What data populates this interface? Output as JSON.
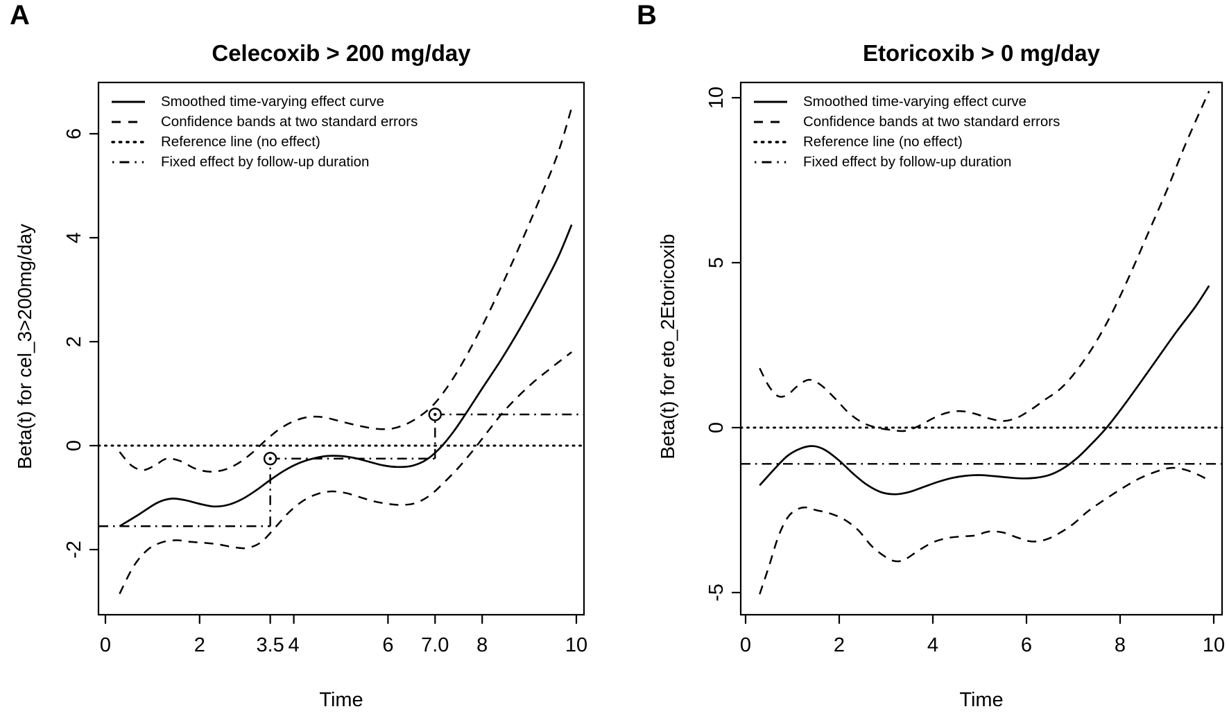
{
  "figure": {
    "background": "#ffffff",
    "ink_color": "#000000"
  },
  "chart_data": [
    {
      "id": "a",
      "panel_letter": "A",
      "type": "line",
      "title": "Celecoxib > 200 mg/day",
      "xlabel": "Time",
      "ylabel": "Beta(t) for cel_3>200mg/day",
      "xlim": [
        -0.15,
        10.16
      ],
      "ylim": [
        -3.3,
        7.0
      ],
      "grid": false,
      "legend_position": "top-left",
      "x_ticks": [
        {
          "value": 0,
          "label": "0"
        },
        {
          "value": 2,
          "label": "2"
        },
        {
          "value": 3.5,
          "label": "3.5"
        },
        {
          "value": 4,
          "label": "4"
        },
        {
          "value": 6,
          "label": "6"
        },
        {
          "value": 7,
          "label": "7.0"
        },
        {
          "value": 8,
          "label": "8"
        },
        {
          "value": 10,
          "label": "10"
        }
      ],
      "y_ticks": [
        {
          "value": 6,
          "label": "6"
        },
        {
          "value": 4,
          "label": "4"
        },
        {
          "value": 2,
          "label": "2"
        },
        {
          "value": 0,
          "label": "0"
        },
        {
          "value": -2,
          "label": "-2"
        }
      ],
      "legend": [
        {
          "label": "Smoothed time-varying effect curve",
          "style": "solid"
        },
        {
          "label": "Confidence bands at two standard errors",
          "style": "dashed"
        },
        {
          "label": "Reference line (no effect)",
          "style": "dotted"
        },
        {
          "label": "Fixed effect by follow-up duration",
          "style": "dashdot"
        }
      ],
      "reference_lines": [
        {
          "name": "Reference line (no effect)",
          "y": 0,
          "style": "dotted"
        }
      ],
      "fixed_effect_steps": {
        "style": "dashdot",
        "levels": [
          {
            "x1": -0.15,
            "x2": 3.5,
            "y": -1.55
          },
          {
            "x1": 3.5,
            "x2": 7.0,
            "y": -0.25
          },
          {
            "x1": 7.0,
            "x2": 10.16,
            "y": 0.6
          }
        ],
        "jumps": [
          {
            "x": 3.5,
            "y1": -1.55,
            "y2": -0.25
          },
          {
            "x": 7.0,
            "y1": -0.25,
            "y2": 0.6
          }
        ],
        "markers": [
          {
            "x": 3.5,
            "y": -0.25
          },
          {
            "x": 7.0,
            "y": 0.6
          }
        ]
      },
      "series": [
        {
          "name": "Smoothed time-varying effect curve",
          "style": "solid",
          "x": [
            0.3,
            0.7,
            1.1,
            1.4,
            1.7,
            2.0,
            2.3,
            2.6,
            2.9,
            3.2,
            3.5,
            3.8,
            4.1,
            4.4,
            4.7,
            5.0,
            5.3,
            5.6,
            5.9,
            6.2,
            6.5,
            6.8,
            7.1,
            7.4,
            7.7,
            8.0,
            8.4,
            8.8,
            9.2,
            9.6,
            9.9
          ],
          "y": [
            -1.55,
            -1.33,
            -1.1,
            -1.02,
            -1.05,
            -1.12,
            -1.17,
            -1.14,
            -1.03,
            -0.86,
            -0.66,
            -0.48,
            -0.34,
            -0.25,
            -0.2,
            -0.2,
            -0.24,
            -0.31,
            -0.38,
            -0.41,
            -0.39,
            -0.28,
            -0.05,
            0.28,
            0.68,
            1.1,
            1.65,
            2.25,
            2.9,
            3.6,
            4.25
          ]
        },
        {
          "name": "Upper confidence band",
          "style": "dashed",
          "x": [
            0.3,
            0.55,
            0.8,
            1.05,
            1.3,
            1.6,
            1.9,
            2.2,
            2.5,
            2.8,
            3.1,
            3.4,
            3.7,
            4.0,
            4.3,
            4.6,
            4.9,
            5.2,
            5.5,
            5.8,
            6.1,
            6.4,
            6.7,
            7.0,
            7.3,
            7.6,
            8.0,
            8.4,
            8.8,
            9.2,
            9.6,
            9.9
          ],
          "y": [
            -0.12,
            -0.38,
            -0.47,
            -0.38,
            -0.25,
            -0.3,
            -0.44,
            -0.5,
            -0.47,
            -0.35,
            -0.15,
            0.1,
            0.32,
            0.47,
            0.55,
            0.55,
            0.49,
            0.42,
            0.36,
            0.32,
            0.33,
            0.42,
            0.58,
            0.82,
            1.18,
            1.62,
            2.3,
            3.05,
            3.85,
            4.7,
            5.6,
            6.5
          ]
        },
        {
          "name": "Lower confidence band",
          "style": "dashed",
          "x": [
            0.3,
            0.6,
            0.9,
            1.2,
            1.5,
            1.8,
            2.1,
            2.4,
            2.7,
            3.0,
            3.3,
            3.6,
            3.9,
            4.2,
            4.5,
            4.8,
            5.1,
            5.4,
            5.7,
            6.0,
            6.3,
            6.6,
            6.9,
            7.2,
            7.5,
            7.8,
            8.1,
            8.5,
            9.0,
            9.4,
            9.9
          ],
          "y": [
            -2.85,
            -2.32,
            -2.0,
            -1.86,
            -1.82,
            -1.85,
            -1.87,
            -1.9,
            -1.95,
            -1.97,
            -1.86,
            -1.58,
            -1.28,
            -1.06,
            -0.93,
            -0.88,
            -0.91,
            -0.99,
            -1.07,
            -1.12,
            -1.14,
            -1.1,
            -0.95,
            -0.7,
            -0.42,
            -0.1,
            0.25,
            0.7,
            1.15,
            1.45,
            1.8
          ]
        }
      ]
    },
    {
      "id": "b",
      "panel_letter": "B",
      "type": "line",
      "title": "Etoricoxib > 0 mg/day",
      "xlabel": "Time",
      "ylabel": "Beta(t) for eto_2Etoricoxib",
      "xlim": [
        -0.1,
        10.18
      ],
      "ylim": [
        -5.7,
        10.6
      ],
      "grid": false,
      "legend_position": "top-left",
      "x_ticks": [
        {
          "value": 0,
          "label": "0"
        },
        {
          "value": 2,
          "label": "2"
        },
        {
          "value": 4,
          "label": "4"
        },
        {
          "value": 6,
          "label": "6"
        },
        {
          "value": 8,
          "label": "8"
        },
        {
          "value": 10,
          "label": "10"
        }
      ],
      "y_ticks": [
        {
          "value": 10,
          "label": "10"
        },
        {
          "value": 5,
          "label": "5"
        },
        {
          "value": 0,
          "label": "0"
        },
        {
          "value": -5,
          "label": "-5"
        }
      ],
      "legend": [
        {
          "label": "Smoothed time-varying effect curve",
          "style": "solid"
        },
        {
          "label": "Confidence bands at two standard errors",
          "style": "dashed"
        },
        {
          "label": "Reference line (no effect)",
          "style": "dotted"
        },
        {
          "label": "Fixed effect by follow-up duration",
          "style": "dashdot"
        }
      ],
      "reference_lines": [
        {
          "name": "Reference line (no effect)",
          "y": 0,
          "style": "dotted"
        },
        {
          "name": "Fixed effect by follow-up duration",
          "y": -1.1,
          "style": "dashdot"
        }
      ],
      "series": [
        {
          "name": "Smoothed time-varying effect curve",
          "style": "solid",
          "x": [
            0.3,
            0.6,
            0.9,
            1.2,
            1.45,
            1.7,
            2.0,
            2.3,
            2.6,
            2.9,
            3.2,
            3.5,
            3.8,
            4.1,
            4.4,
            4.7,
            5.0,
            5.3,
            5.6,
            5.9,
            6.2,
            6.5,
            6.8,
            7.1,
            7.4,
            7.7,
            8.0,
            8.4,
            8.8,
            9.2,
            9.6,
            9.9
          ],
          "y": [
            -1.75,
            -1.28,
            -0.85,
            -0.62,
            -0.56,
            -0.68,
            -1.0,
            -1.4,
            -1.74,
            -1.96,
            -2.02,
            -1.95,
            -1.8,
            -1.65,
            -1.53,
            -1.46,
            -1.44,
            -1.47,
            -1.51,
            -1.54,
            -1.52,
            -1.43,
            -1.22,
            -0.9,
            -0.48,
            -0.02,
            0.52,
            1.3,
            2.1,
            2.9,
            3.65,
            4.3
          ]
        },
        {
          "name": "Upper confidence band",
          "style": "dashed",
          "x": [
            0.3,
            0.5,
            0.7,
            0.9,
            1.1,
            1.35,
            1.6,
            1.9,
            2.2,
            2.5,
            2.8,
            3.1,
            3.4,
            3.7,
            4.0,
            4.3,
            4.6,
            4.9,
            5.2,
            5.5,
            5.8,
            6.1,
            6.4,
            6.7,
            7.0,
            7.4,
            7.8,
            8.2,
            8.6,
            9.0,
            9.4,
            9.9
          ],
          "y": [
            1.8,
            1.25,
            0.95,
            1.0,
            1.25,
            1.45,
            1.3,
            0.9,
            0.45,
            0.15,
            0.0,
            -0.07,
            -0.1,
            0.05,
            0.28,
            0.45,
            0.5,
            0.42,
            0.28,
            0.2,
            0.3,
            0.55,
            0.85,
            1.15,
            1.6,
            2.4,
            3.4,
            4.6,
            5.9,
            7.2,
            8.6,
            10.2
          ]
        },
        {
          "name": "Lower confidence band",
          "style": "dashed",
          "x": [
            0.3,
            0.5,
            0.7,
            0.9,
            1.1,
            1.3,
            1.5,
            1.8,
            2.1,
            2.4,
            2.7,
            3.0,
            3.2,
            3.4,
            3.7,
            4.0,
            4.3,
            4.6,
            4.9,
            5.2,
            5.5,
            5.8,
            6.1,
            6.4,
            6.7,
            7.0,
            7.3,
            7.6,
            8.0,
            8.4,
            8.8,
            9.1,
            9.4,
            9.7,
            9.9
          ],
          "y": [
            -5.05,
            -4.2,
            -3.3,
            -2.72,
            -2.48,
            -2.42,
            -2.5,
            -2.6,
            -2.78,
            -3.1,
            -3.6,
            -3.93,
            -4.05,
            -4.0,
            -3.72,
            -3.48,
            -3.35,
            -3.3,
            -3.27,
            -3.15,
            -3.18,
            -3.33,
            -3.45,
            -3.4,
            -3.2,
            -2.92,
            -2.55,
            -2.25,
            -1.88,
            -1.55,
            -1.32,
            -1.22,
            -1.28,
            -1.45,
            -1.6
          ]
        }
      ]
    }
  ]
}
